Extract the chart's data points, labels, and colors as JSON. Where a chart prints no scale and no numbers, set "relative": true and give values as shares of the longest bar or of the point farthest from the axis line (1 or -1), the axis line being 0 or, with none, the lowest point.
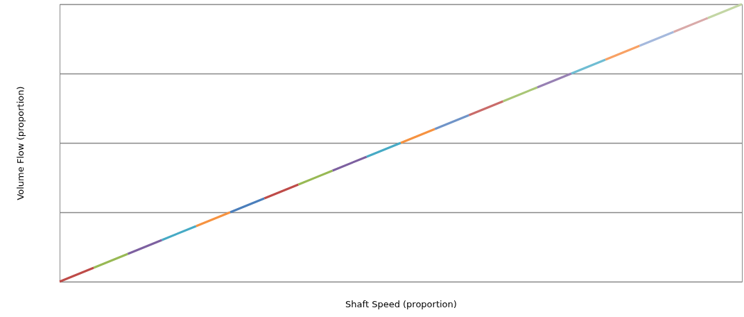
{
  "chart_data": {
    "type": "line",
    "xlabel": "Shaft Speed (proportion)",
    "ylabel": "Volume Flow (proportion)",
    "relative": true,
    "grid": "y",
    "categories": [
      null,
      null,
      null,
      null,
      null,
      null,
      null,
      null,
      null,
      null,
      null,
      null,
      null,
      null,
      null,
      null,
      null,
      null,
      null,
      null,
      null
    ],
    "series": [
      {
        "color": "#be4b48",
        "values": [
          0,
          0.05,
          null,
          null,
          null,
          null,
          null,
          null,
          null,
          null,
          null,
          null,
          null,
          null,
          null,
          null,
          null,
          null,
          null,
          null,
          null
        ]
      },
      {
        "color": "#98b954",
        "values": [
          null,
          0.05,
          0.1,
          null,
          null,
          null,
          null,
          null,
          null,
          null,
          null,
          null,
          null,
          null,
          null,
          null,
          null,
          null,
          null,
          null,
          null
        ]
      },
      {
        "color": "#7d60a0",
        "values": [
          null,
          null,
          0.1,
          0.15,
          null,
          null,
          null,
          null,
          null,
          null,
          null,
          null,
          null,
          null,
          null,
          null,
          null,
          null,
          null,
          null,
          null
        ]
      },
      {
        "color": "#46aac5",
        "values": [
          null,
          null,
          null,
          0.15,
          0.2,
          null,
          null,
          null,
          null,
          null,
          null,
          null,
          null,
          null,
          null,
          null,
          null,
          null,
          null,
          null,
          null
        ]
      },
      {
        "color": "#f69240",
        "values": [
          null,
          null,
          null,
          null,
          0.2,
          0.25,
          null,
          null,
          null,
          null,
          null,
          null,
          null,
          null,
          null,
          null,
          null,
          null,
          null,
          null,
          null
        ]
      },
      {
        "color": "#4a7ebb",
        "values": [
          null,
          null,
          null,
          null,
          null,
          0.25,
          0.3,
          null,
          null,
          null,
          null,
          null,
          null,
          null,
          null,
          null,
          null,
          null,
          null,
          null,
          null
        ]
      },
      {
        "color": "#be4b48",
        "values": [
          null,
          null,
          null,
          null,
          null,
          null,
          0.3,
          0.35,
          null,
          null,
          null,
          null,
          null,
          null,
          null,
          null,
          null,
          null,
          null,
          null,
          null
        ]
      },
      {
        "color": "#98b954",
        "values": [
          null,
          null,
          null,
          null,
          null,
          null,
          null,
          0.35,
          0.4,
          null,
          null,
          null,
          null,
          null,
          null,
          null,
          null,
          null,
          null,
          null,
          null
        ]
      },
      {
        "color": "#7d60a0",
        "values": [
          null,
          null,
          null,
          null,
          null,
          null,
          null,
          null,
          0.4,
          0.45,
          null,
          null,
          null,
          null,
          null,
          null,
          null,
          null,
          null,
          null,
          null
        ]
      },
      {
        "color": "#46aac5",
        "values": [
          null,
          null,
          null,
          null,
          null,
          null,
          null,
          null,
          null,
          0.45,
          0.5,
          null,
          null,
          null,
          null,
          null,
          null,
          null,
          null,
          null,
          null
        ]
      },
      {
        "color": "#f69240",
        "values": [
          null,
          null,
          null,
          null,
          null,
          null,
          null,
          null,
          null,
          null,
          0.5,
          0.55,
          null,
          null,
          null,
          null,
          null,
          null,
          null,
          null,
          null
        ]
      },
      {
        "color": "#7094c8",
        "values": [
          null,
          null,
          null,
          null,
          null,
          null,
          null,
          null,
          null,
          null,
          null,
          0.55,
          0.6,
          null,
          null,
          null,
          null,
          null,
          null,
          null,
          null
        ]
      },
      {
        "color": "#c96b69",
        "values": [
          null,
          null,
          null,
          null,
          null,
          null,
          null,
          null,
          null,
          null,
          null,
          null,
          0.6,
          0.65,
          null,
          null,
          null,
          null,
          null,
          null,
          null
        ]
      },
      {
        "color": "#a9c676",
        "values": [
          null,
          null,
          null,
          null,
          null,
          null,
          null,
          null,
          null,
          null,
          null,
          null,
          null,
          0.65,
          0.7,
          null,
          null,
          null,
          null,
          null,
          null
        ]
      },
      {
        "color": "#9780b3",
        "values": [
          null,
          null,
          null,
          null,
          null,
          null,
          null,
          null,
          null,
          null,
          null,
          null,
          null,
          null,
          0.7,
          0.75,
          null,
          null,
          null,
          null,
          null
        ]
      },
      {
        "color": "#6fbdd3",
        "values": [
          null,
          null,
          null,
          null,
          null,
          null,
          null,
          null,
          null,
          null,
          null,
          null,
          null,
          null,
          null,
          0.75,
          0.8,
          null,
          null,
          null,
          null
        ]
      },
      {
        "color": "#f8a164",
        "values": [
          null,
          null,
          null,
          null,
          null,
          null,
          null,
          null,
          null,
          null,
          null,
          null,
          null,
          null,
          null,
          null,
          0.8,
          0.85,
          null,
          null,
          null
        ]
      },
      {
        "color": "#a5b9dd",
        "values": [
          null,
          null,
          null,
          null,
          null,
          null,
          null,
          null,
          null,
          null,
          null,
          null,
          null,
          null,
          null,
          null,
          null,
          0.85,
          0.9,
          null,
          null
        ]
      },
      {
        "color": "#d9aaa9",
        "values": [
          null,
          null,
          null,
          null,
          null,
          null,
          null,
          null,
          null,
          null,
          null,
          null,
          null,
          null,
          null,
          null,
          null,
          null,
          0.9,
          0.95,
          null
        ]
      },
      {
        "color": "#c3d6a4",
        "values": [
          null,
          null,
          null,
          null,
          null,
          null,
          null,
          null,
          null,
          null,
          null,
          null,
          null,
          null,
          null,
          null,
          null,
          null,
          null,
          0.95,
          1
        ]
      }
    ]
  }
}
